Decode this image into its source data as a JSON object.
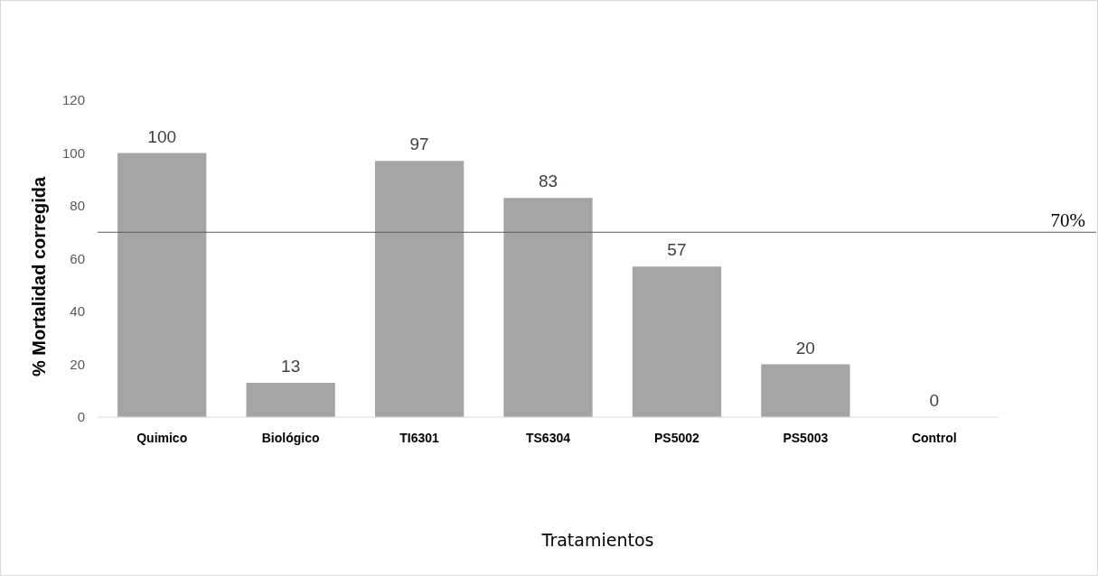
{
  "chart_data": {
    "type": "bar",
    "xlabel": "Tratamientos",
    "ylabel": "% Mortalidad corregida",
    "categories": [
      "Quimico",
      "Biológico",
      "TI6301",
      "TS6304",
      "PS5002",
      "PS5003",
      "Control"
    ],
    "values": [
      100,
      13,
      97,
      83,
      57,
      20,
      0
    ],
    "color": "#a5a5a5",
    "ylim": [
      0,
      120
    ],
    "yticks": [
      0,
      20,
      40,
      60,
      80,
      100,
      120
    ],
    "data_labels": true,
    "grid": false,
    "ref_lines": [
      {
        "axis": "y",
        "value": 70,
        "label": "70%",
        "color": "#595959"
      }
    ]
  }
}
